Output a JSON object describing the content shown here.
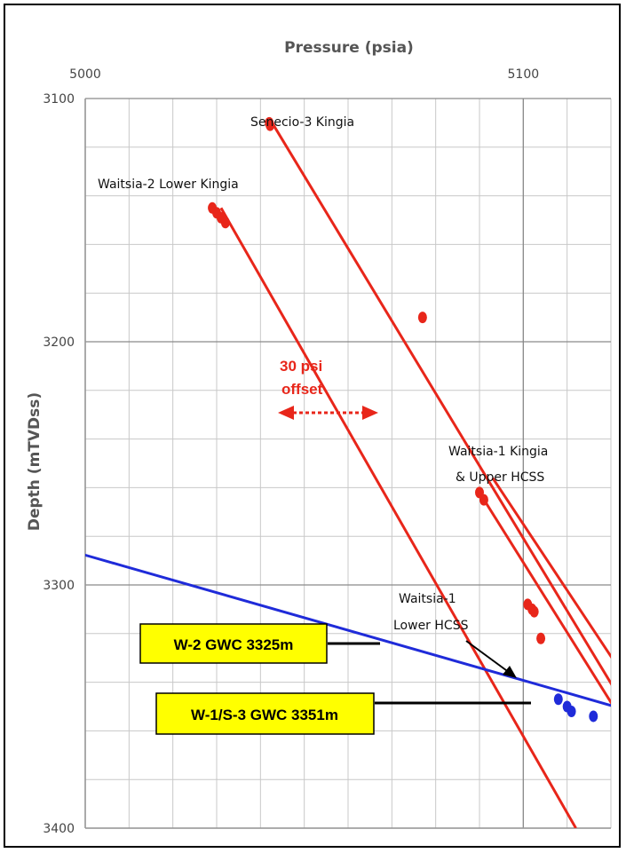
{
  "chart_data": {
    "type": "scatter",
    "xlabel": "Pressure (psia)",
    "ylabel": "Depth (mTVDss)",
    "xlim": [
      5000,
      5120
    ],
    "ylim": [
      3400,
      3100
    ],
    "xticks": [
      5000,
      5100
    ],
    "yticks": [
      3100,
      3200,
      3300,
      3400
    ],
    "grid": true,
    "annotations": {
      "w2_lower_kingia": "Waitsia-2 Lower Kingia",
      "s3_kingia": "Senecio-3 Kingia",
      "w1_kingia_line1": "Waitsia-1 Kingia",
      "w1_kingia_line2": "& Upper HCSS",
      "w1_lower_line1": "Waitsia-1",
      "w1_lower_line2": "Lower HCSS",
      "offset_line1": "30 psi",
      "offset_line2": "offset",
      "w2_gwc": "W-2 GWC  3325m",
      "w1s3_gwc": "W-1/S-3 GWC  3351m"
    },
    "series": [
      {
        "kind": "points",
        "color": "#e8261a",
        "points": [
          [
            5029,
            3145
          ],
          [
            5030,
            3147
          ],
          [
            5031,
            3149
          ],
          [
            5032,
            3151
          ]
        ]
      },
      {
        "kind": "points",
        "color": "#e8261a",
        "points": [
          [
            5042,
            3110
          ],
          [
            5042.2,
            3111
          ]
        ]
      },
      {
        "kind": "points",
        "color": "#e8261a",
        "points": [
          [
            5077,
            3190
          ]
        ]
      },
      {
        "kind": "points",
        "color": "#e8261a",
        "points": [
          [
            5090,
            3262
          ],
          [
            5091,
            3265
          ],
          [
            5101,
            3308
          ],
          [
            5102,
            3310
          ],
          [
            5102.5,
            3311
          ],
          [
            5104,
            3322
          ]
        ]
      },
      {
        "kind": "points",
        "color": "#1f2bd9",
        "points": [
          [
            5108,
            3347
          ],
          [
            5110,
            3350
          ],
          [
            5111,
            3352
          ],
          [
            5116,
            3354
          ]
        ]
      },
      {
        "kind": "line",
        "color": "#e8261a",
        "points": [
          [
            5031,
            3145
          ],
          [
            5112,
            3400
          ]
        ]
      },
      {
        "kind": "line",
        "color": "#e8261a",
        "points": [
          [
            5042,
            3108
          ],
          [
            5140,
            3400
          ]
        ]
      },
      {
        "kind": "line",
        "color": "#e8261a",
        "points": [
          [
            5090,
            3262
          ],
          [
            5138,
            3400
          ]
        ]
      },
      {
        "kind": "line",
        "color": "#e8261a",
        "points": [
          [
            5093,
            3256
          ],
          [
            5146,
            3400
          ]
        ]
      },
      {
        "kind": "line",
        "color": "#1f2bd9",
        "points": [
          [
            4985,
            3280
          ],
          [
            5150,
            3365
          ]
        ]
      }
    ]
  }
}
